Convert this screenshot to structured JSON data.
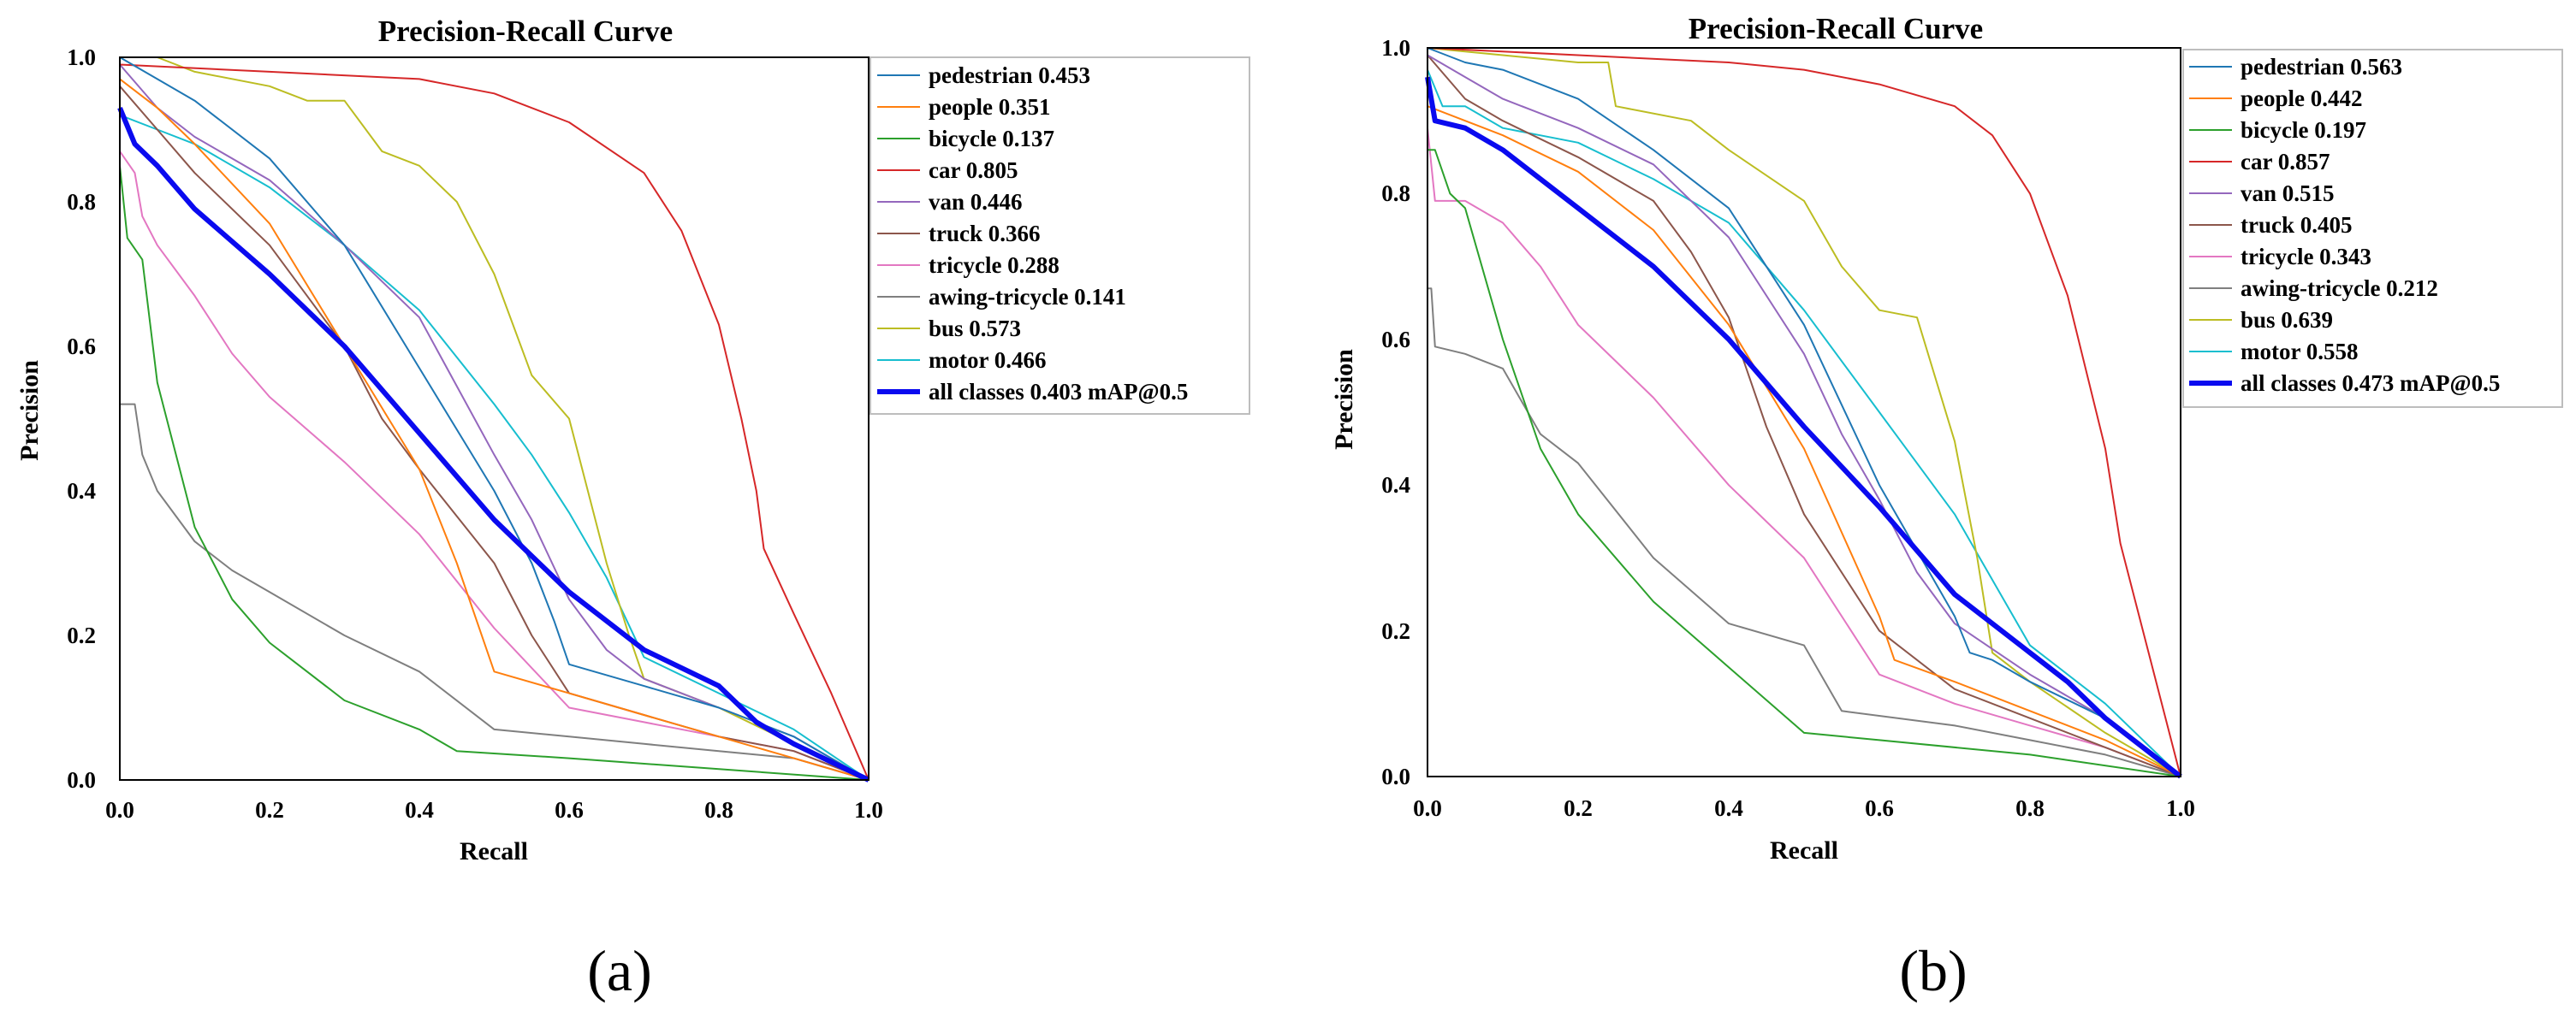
{
  "chart_data": [
    {
      "type": "line",
      "panel_label": "(a)",
      "title": "Precision-Recall Curve",
      "xlabel": "Recall",
      "ylabel": "Precision",
      "xlim": [
        0,
        1
      ],
      "ylim": [
        0,
        1
      ],
      "xticks": [
        "0.0",
        "0.2",
        "0.4",
        "0.6",
        "0.8",
        "1.0"
      ],
      "yticks": [
        "0.0",
        "0.2",
        "0.4",
        "0.6",
        "0.8",
        "1.0"
      ],
      "grid": false,
      "legend_position": "outside-right-top",
      "series": [
        {
          "name": "pedestrian",
          "label": "pedestrian 0.453",
          "color": "#1f77b4",
          "ap": 0.453,
          "x": [
            0,
            0.05,
            0.1,
            0.2,
            0.3,
            0.4,
            0.5,
            0.55,
            0.58,
            0.6,
            0.7,
            0.8,
            0.9,
            1.0
          ],
          "y": [
            1.0,
            0.97,
            0.94,
            0.86,
            0.74,
            0.57,
            0.4,
            0.3,
            0.22,
            0.16,
            0.13,
            0.1,
            0.06,
            0
          ]
        },
        {
          "name": "people",
          "label": "people 0.351",
          "color": "#ff7f0e",
          "ap": 0.351,
          "x": [
            0,
            0.05,
            0.1,
            0.2,
            0.3,
            0.4,
            0.45,
            0.5,
            0.6,
            0.7,
            0.8,
            0.9,
            1.0
          ],
          "y": [
            0.97,
            0.93,
            0.88,
            0.77,
            0.6,
            0.43,
            0.3,
            0.15,
            0.12,
            0.09,
            0.06,
            0.03,
            0
          ]
        },
        {
          "name": "bicycle",
          "label": "bicycle 0.137",
          "color": "#2ca02c",
          "ap": 0.137,
          "x": [
            0,
            0.01,
            0.03,
            0.05,
            0.1,
            0.15,
            0.2,
            0.3,
            0.4,
            0.45,
            0.6,
            0.8,
            1.0
          ],
          "y": [
            0.85,
            0.75,
            0.72,
            0.55,
            0.35,
            0.25,
            0.19,
            0.11,
            0.07,
            0.04,
            0.03,
            0.015,
            0
          ]
        },
        {
          "name": "car",
          "label": "car 0.805",
          "color": "#d62728",
          "ap": 0.805,
          "x": [
            0,
            0.2,
            0.4,
            0.5,
            0.6,
            0.7,
            0.75,
            0.8,
            0.83,
            0.85,
            0.86,
            0.9,
            0.95,
            1.0
          ],
          "y": [
            0.99,
            0.98,
            0.97,
            0.95,
            0.91,
            0.84,
            0.76,
            0.63,
            0.5,
            0.4,
            0.32,
            0.23,
            0.12,
            0
          ]
        },
        {
          "name": "van",
          "label": "van 0.446",
          "color": "#9467bd",
          "ap": 0.446,
          "x": [
            0,
            0.05,
            0.1,
            0.2,
            0.3,
            0.4,
            0.5,
            0.55,
            0.6,
            0.65,
            0.7,
            0.8,
            0.9,
            1.0
          ],
          "y": [
            0.99,
            0.93,
            0.89,
            0.83,
            0.74,
            0.64,
            0.45,
            0.36,
            0.25,
            0.18,
            0.14,
            0.1,
            0.06,
            0
          ]
        },
        {
          "name": "truck",
          "label": "truck 0.366",
          "color": "#8c564b",
          "ap": 0.366,
          "x": [
            0,
            0.05,
            0.1,
            0.2,
            0.3,
            0.35,
            0.4,
            0.5,
            0.55,
            0.6,
            0.7,
            0.8,
            0.9,
            1.0
          ],
          "y": [
            0.96,
            0.9,
            0.84,
            0.74,
            0.6,
            0.5,
            0.43,
            0.3,
            0.2,
            0.12,
            0.09,
            0.06,
            0.04,
            0
          ]
        },
        {
          "name": "tricycle",
          "label": "tricycle 0.288",
          "color": "#e377c2",
          "ap": 0.288,
          "x": [
            0,
            0.02,
            0.03,
            0.05,
            0.1,
            0.15,
            0.2,
            0.3,
            0.4,
            0.5,
            0.6,
            0.7,
            0.8,
            0.9,
            1.0
          ],
          "y": [
            0.87,
            0.84,
            0.78,
            0.74,
            0.67,
            0.59,
            0.53,
            0.44,
            0.34,
            0.21,
            0.1,
            0.08,
            0.06,
            0.04,
            0
          ]
        },
        {
          "name": "awing-tricycle",
          "label": "awing-tricycle 0.141",
          "color": "#7f7f7f",
          "ap": 0.141,
          "x": [
            0,
            0.02,
            0.03,
            0.05,
            0.1,
            0.15,
            0.2,
            0.3,
            0.4,
            0.5,
            0.6,
            0.7,
            0.8,
            0.9,
            1.0
          ],
          "y": [
            0.52,
            0.52,
            0.45,
            0.4,
            0.33,
            0.29,
            0.26,
            0.2,
            0.15,
            0.07,
            0.06,
            0.05,
            0.04,
            0.03,
            0
          ]
        },
        {
          "name": "bus",
          "label": "bus 0.573",
          "color": "#bcbd22",
          "ap": 0.573,
          "x": [
            0,
            0.05,
            0.1,
            0.2,
            0.25,
            0.3,
            0.35,
            0.4,
            0.45,
            0.5,
            0.55,
            0.6,
            0.65,
            0.68,
            0.7,
            0.8,
            0.9,
            1.0
          ],
          "y": [
            1.0,
            1.0,
            0.98,
            0.96,
            0.94,
            0.94,
            0.87,
            0.85,
            0.8,
            0.7,
            0.56,
            0.5,
            0.3,
            0.2,
            0.14,
            0.1,
            0.05,
            0
          ]
        },
        {
          "name": "motor",
          "label": "motor 0.466",
          "color": "#17becf",
          "ap": 0.466,
          "x": [
            0,
            0.05,
            0.1,
            0.2,
            0.3,
            0.4,
            0.5,
            0.55,
            0.6,
            0.65,
            0.7,
            0.8,
            0.9,
            1.0
          ],
          "y": [
            0.92,
            0.9,
            0.88,
            0.82,
            0.74,
            0.65,
            0.52,
            0.45,
            0.37,
            0.28,
            0.17,
            0.12,
            0.07,
            0
          ]
        },
        {
          "name": "all classes",
          "label": "all classes 0.403 mAP@0.5",
          "color": "#0a0aef",
          "ap": 0.403,
          "bold": true,
          "x": [
            0,
            0.02,
            0.05,
            0.1,
            0.2,
            0.3,
            0.4,
            0.5,
            0.6,
            0.7,
            0.8,
            0.85,
            0.9,
            1.0
          ],
          "y": [
            0.93,
            0.88,
            0.85,
            0.79,
            0.7,
            0.6,
            0.48,
            0.36,
            0.26,
            0.18,
            0.13,
            0.08,
            0.05,
            0
          ]
        }
      ]
    },
    {
      "type": "line",
      "panel_label": "(b)",
      "title": "Precision-Recall Curve",
      "xlabel": "Recall",
      "ylabel": "Precision",
      "xlim": [
        0,
        1
      ],
      "ylim": [
        0,
        1
      ],
      "xticks": [
        "0.0",
        "0.2",
        "0.4",
        "0.6",
        "0.8",
        "1.0"
      ],
      "yticks": [
        "0.0",
        "0.2",
        "0.4",
        "0.6",
        "0.8",
        "1.0"
      ],
      "grid": false,
      "legend_position": "outside-right-top",
      "series": [
        {
          "name": "pedestrian",
          "label": "pedestrian 0.563",
          "color": "#1f77b4",
          "ap": 0.563,
          "x": [
            0,
            0.05,
            0.1,
            0.2,
            0.3,
            0.4,
            0.5,
            0.6,
            0.7,
            0.72,
            0.75,
            0.8,
            0.9,
            1.0
          ],
          "y": [
            1.0,
            0.98,
            0.97,
            0.93,
            0.86,
            0.78,
            0.62,
            0.4,
            0.22,
            0.17,
            0.16,
            0.13,
            0.08,
            0
          ]
        },
        {
          "name": "people",
          "label": "people 0.442",
          "color": "#ff7f0e",
          "ap": 0.442,
          "x": [
            0,
            0.05,
            0.1,
            0.2,
            0.3,
            0.4,
            0.5,
            0.6,
            0.62,
            0.7,
            0.8,
            0.9,
            1.0
          ],
          "y": [
            0.92,
            0.9,
            0.88,
            0.83,
            0.75,
            0.62,
            0.45,
            0.22,
            0.16,
            0.13,
            0.09,
            0.05,
            0
          ]
        },
        {
          "name": "bicycle",
          "label": "bicycle 0.197",
          "color": "#2ca02c",
          "ap": 0.197,
          "x": [
            0,
            0.01,
            0.03,
            0.05,
            0.1,
            0.15,
            0.2,
            0.3,
            0.4,
            0.5,
            0.6,
            0.8,
            1.0
          ],
          "y": [
            0.86,
            0.86,
            0.8,
            0.78,
            0.6,
            0.45,
            0.36,
            0.24,
            0.15,
            0.06,
            0.05,
            0.03,
            0
          ]
        },
        {
          "name": "car",
          "label": "car 0.857",
          "color": "#d62728",
          "ap": 0.857,
          "x": [
            0,
            0.2,
            0.4,
            0.5,
            0.6,
            0.7,
            0.75,
            0.8,
            0.85,
            0.9,
            0.92,
            0.95,
            1.0
          ],
          "y": [
            1.0,
            0.99,
            0.98,
            0.97,
            0.95,
            0.92,
            0.88,
            0.8,
            0.66,
            0.45,
            0.32,
            0.2,
            0
          ]
        },
        {
          "name": "van",
          "label": "van 0.515",
          "color": "#9467bd",
          "ap": 0.515,
          "x": [
            0,
            0.05,
            0.1,
            0.2,
            0.3,
            0.4,
            0.5,
            0.55,
            0.6,
            0.65,
            0.7,
            0.8,
            0.9,
            1.0
          ],
          "y": [
            0.99,
            0.96,
            0.93,
            0.89,
            0.84,
            0.74,
            0.58,
            0.47,
            0.38,
            0.28,
            0.21,
            0.14,
            0.08,
            0
          ]
        },
        {
          "name": "truck",
          "label": "truck 0.405",
          "color": "#8c564b",
          "ap": 0.405,
          "x": [
            0,
            0.05,
            0.1,
            0.2,
            0.3,
            0.35,
            0.4,
            0.45,
            0.5,
            0.55,
            0.6,
            0.7,
            0.8,
            0.9,
            1.0
          ],
          "y": [
            0.99,
            0.93,
            0.9,
            0.85,
            0.79,
            0.72,
            0.63,
            0.48,
            0.36,
            0.28,
            0.2,
            0.12,
            0.08,
            0.04,
            0
          ]
        },
        {
          "name": "tricycle",
          "label": "tricycle 0.343",
          "color": "#e377c2",
          "ap": 0.343,
          "x": [
            0,
            0.01,
            0.03,
            0.05,
            0.1,
            0.15,
            0.2,
            0.3,
            0.4,
            0.5,
            0.6,
            0.7,
            0.8,
            0.9,
            1.0
          ],
          "y": [
            0.89,
            0.79,
            0.79,
            0.79,
            0.76,
            0.7,
            0.62,
            0.52,
            0.4,
            0.3,
            0.14,
            0.1,
            0.07,
            0.04,
            0
          ]
        },
        {
          "name": "awing-tricycle",
          "label": "awing-tricycle 0.212",
          "color": "#7f7f7f",
          "ap": 0.212,
          "x": [
            0,
            0.005,
            0.01,
            0.05,
            0.1,
            0.15,
            0.2,
            0.3,
            0.4,
            0.5,
            0.55,
            0.7,
            0.8,
            0.9,
            1.0
          ],
          "y": [
            0.67,
            0.67,
            0.59,
            0.58,
            0.56,
            0.47,
            0.43,
            0.3,
            0.21,
            0.18,
            0.09,
            0.07,
            0.05,
            0.03,
            0
          ]
        },
        {
          "name": "bus",
          "label": "bus 0.639",
          "color": "#bcbd22",
          "ap": 0.639,
          "x": [
            0,
            0.1,
            0.2,
            0.24,
            0.25,
            0.35,
            0.4,
            0.5,
            0.55,
            0.6,
            0.65,
            0.7,
            0.73,
            0.75,
            0.8,
            0.9,
            1.0
          ],
          "y": [
            1.0,
            0.99,
            0.98,
            0.98,
            0.92,
            0.9,
            0.86,
            0.79,
            0.7,
            0.64,
            0.63,
            0.46,
            0.3,
            0.17,
            0.13,
            0.06,
            0
          ]
        },
        {
          "name": "motor",
          "label": "motor 0.558",
          "color": "#17becf",
          "ap": 0.558,
          "x": [
            0,
            0.02,
            0.05,
            0.1,
            0.2,
            0.3,
            0.4,
            0.5,
            0.6,
            0.7,
            0.75,
            0.8,
            0.9,
            1.0
          ],
          "y": [
            0.97,
            0.92,
            0.92,
            0.89,
            0.87,
            0.82,
            0.76,
            0.64,
            0.5,
            0.36,
            0.27,
            0.18,
            0.1,
            0
          ]
        },
        {
          "name": "all classes",
          "label": "all classes 0.473 mAP@0.5",
          "color": "#0a0aef",
          "ap": 0.473,
          "bold": true,
          "x": [
            0,
            0.01,
            0.05,
            0.1,
            0.2,
            0.3,
            0.4,
            0.5,
            0.6,
            0.7,
            0.8,
            0.85,
            0.9,
            1.0
          ],
          "y": [
            0.96,
            0.9,
            0.89,
            0.86,
            0.78,
            0.7,
            0.6,
            0.48,
            0.37,
            0.25,
            0.17,
            0.13,
            0.08,
            0
          ]
        }
      ]
    }
  ]
}
